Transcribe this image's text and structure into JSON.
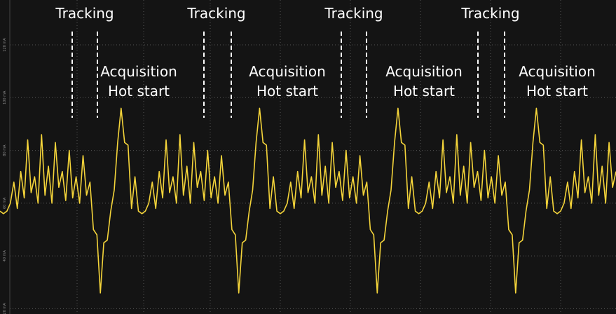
{
  "chart_data": {
    "type": "line",
    "color": "#f4d43a",
    "ylim": [
      18,
      137
    ],
    "yticks": [
      {
        "value": 20,
        "label": "20 mA"
      },
      {
        "value": 40,
        "label": "40 mA"
      },
      {
        "value": 60,
        "label": "60 mA"
      },
      {
        "value": 80,
        "label": "80 mA"
      },
      {
        "value": 100,
        "label": "100 mA"
      },
      {
        "value": 120,
        "label": "120 mA"
      }
    ],
    "grid": true,
    "annotations": [
      [
        "Tracking",
        "Acquisition",
        "Hot start"
      ],
      [
        "Tracking",
        "Acquisition",
        "Hot start"
      ],
      [
        "Tracking",
        "Acquisition",
        "Hot start"
      ],
      [
        "Tracking",
        "Acquisition",
        "Hot start"
      ]
    ],
    "values": [
      57,
      56,
      57,
      60,
      68,
      58,
      72,
      62,
      84,
      64,
      70,
      60,
      86,
      63,
      74,
      60,
      83,
      66,
      72,
      61,
      80,
      62,
      70,
      60,
      78,
      63,
      68,
      50,
      48,
      26,
      45,
      46,
      57,
      65,
      83,
      96,
      83,
      82,
      58,
      70,
      57,
      56,
      57,
      60,
      68,
      58,
      72,
      62,
      84,
      64,
      70,
      60,
      86,
      63,
      74,
      60,
      83,
      66,
      72,
      61,
      80,
      62,
      70,
      60,
      78,
      63,
      68,
      50,
      48,
      26,
      45,
      46,
      57,
      65,
      83,
      96,
      83,
      82,
      58,
      70,
      57,
      56,
      57,
      60,
      68,
      58,
      72,
      62,
      84,
      64,
      70,
      60,
      86,
      63,
      74,
      60,
      83,
      66,
      72,
      61,
      80,
      62,
      70,
      60,
      78,
      63,
      68,
      50,
      48,
      26,
      45,
      46,
      57,
      65,
      83,
      96,
      83,
      82,
      58,
      70,
      57,
      56,
      57,
      60,
      68,
      58,
      72,
      62,
      84,
      64,
      70,
      60,
      86,
      63,
      74,
      60,
      83,
      66,
      72,
      61,
      80,
      62,
      70,
      60,
      78,
      63,
      68,
      50,
      48,
      26,
      45,
      46,
      57,
      65,
      83,
      96,
      83,
      82,
      58,
      70,
      57,
      56,
      57,
      60,
      68,
      58,
      72,
      62,
      84,
      64,
      70,
      60,
      86,
      63,
      74,
      60,
      83,
      66,
      72
    ]
  }
}
